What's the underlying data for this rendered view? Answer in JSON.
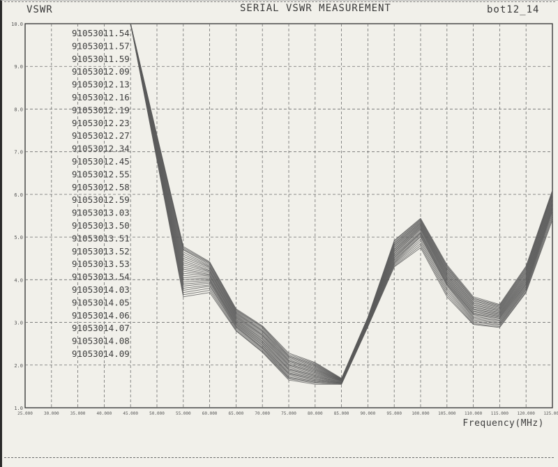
{
  "header": {
    "ylabel": "VSWR",
    "title": "SERIAL VSWR MEASUREMENT",
    "file_name": "bot12_14"
  },
  "colors": {
    "paper": "#f1f0ea",
    "ink": "#3a3a3a",
    "grid": "#6e6e6e",
    "series": "#5a5a5a"
  },
  "chart_data": {
    "type": "line",
    "title": "SERIAL VSWR MEASUREMENT",
    "xlabel": "Frequency(MHz)",
    "ylabel": "VSWR",
    "xlim": [
      25,
      125
    ],
    "ylim": [
      1.0,
      10.0
    ],
    "grid": true,
    "legend_position": "top-left",
    "x_ticks": [
      "25.000",
      "30.000",
      "35.000",
      "40.000",
      "45.000",
      "50.000",
      "55.000",
      "60.000",
      "65.000",
      "70.000",
      "75.000",
      "80.000",
      "85.000",
      "90.000",
      "95.000",
      "100.000",
      "105.000",
      "110.000",
      "115.000",
      "120.000",
      "125.000"
    ],
    "y_ticks": [
      "1.0",
      "2.0",
      "3.0",
      "4.0",
      "5.0",
      "6.0",
      "7.0",
      "8.0",
      "9.0",
      "10.0"
    ],
    "x": [
      45,
      55,
      60,
      65,
      70,
      75,
      80,
      85,
      90,
      95,
      100,
      105,
      110,
      115,
      120,
      125
    ],
    "series": [
      {
        "name": "91053011.54",
        "values": [
          10.0,
          3.6,
          3.7,
          2.8,
          2.3,
          1.65,
          1.55,
          1.55,
          2.9,
          4.3,
          4.75,
          3.6,
          2.95,
          2.88,
          3.7,
          5.4
        ]
      },
      {
        "name": "91053011.57",
        "values": [
          10.0,
          3.65,
          3.75,
          2.82,
          2.32,
          1.68,
          1.58,
          1.55,
          2.9,
          4.32,
          4.8,
          3.65,
          2.97,
          2.9,
          3.72,
          5.45
        ]
      },
      {
        "name": "91053011.59",
        "values": [
          10.0,
          3.7,
          3.8,
          2.85,
          2.35,
          1.7,
          1.6,
          1.56,
          2.91,
          4.35,
          4.85,
          3.7,
          3.0,
          2.93,
          3.75,
          5.5
        ]
      },
      {
        "name": "91053012.09",
        "values": [
          10.0,
          3.75,
          3.85,
          2.88,
          2.38,
          1.72,
          1.62,
          1.57,
          2.92,
          4.38,
          4.9,
          3.75,
          3.03,
          2.95,
          3.78,
          5.55
        ]
      },
      {
        "name": "91053012.13",
        "values": [
          10.0,
          3.8,
          3.88,
          2.9,
          2.4,
          1.75,
          1.64,
          1.57,
          2.93,
          4.4,
          4.95,
          3.8,
          3.06,
          2.98,
          3.8,
          5.6
        ]
      },
      {
        "name": "91053012.16",
        "values": [
          10.0,
          3.85,
          3.92,
          2.92,
          2.42,
          1.78,
          1.66,
          1.58,
          2.94,
          4.42,
          5.0,
          3.85,
          3.09,
          3.0,
          3.83,
          5.62
        ]
      },
      {
        "name": "91053012.19",
        "values": [
          10.0,
          3.9,
          3.95,
          2.94,
          2.45,
          1.8,
          1.68,
          1.58,
          2.95,
          4.45,
          5.02,
          3.88,
          3.12,
          3.03,
          3.85,
          5.65
        ]
      },
      {
        "name": "91053012.23",
        "values": [
          10.0,
          3.95,
          3.98,
          2.96,
          2.47,
          1.82,
          1.7,
          1.59,
          2.96,
          4.47,
          5.05,
          3.9,
          3.15,
          3.05,
          3.88,
          5.68
        ]
      },
      {
        "name": "91053012.27",
        "values": [
          10.0,
          4.0,
          4.0,
          2.98,
          2.5,
          1.85,
          1.72,
          1.6,
          2.97,
          4.5,
          5.08,
          3.92,
          3.18,
          3.08,
          3.9,
          5.7
        ]
      },
      {
        "name": "91053012.34",
        "values": [
          10.0,
          4.05,
          4.02,
          3.0,
          2.52,
          1.88,
          1.74,
          1.6,
          2.98,
          4.52,
          5.1,
          3.95,
          3.2,
          3.1,
          3.92,
          5.72
        ]
      },
      {
        "name": "91053012.45",
        "values": [
          10.0,
          4.1,
          4.05,
          3.02,
          2.55,
          1.9,
          1.76,
          1.61,
          2.99,
          4.55,
          5.12,
          3.97,
          3.22,
          3.12,
          3.95,
          5.75
        ]
      },
      {
        "name": "91053012.55",
        "values": [
          10.0,
          4.15,
          4.08,
          3.04,
          2.57,
          1.92,
          1.78,
          1.62,
          3.0,
          4.57,
          5.15,
          4.0,
          3.25,
          3.14,
          3.97,
          5.78
        ]
      },
      {
        "name": "91053012.58",
        "values": [
          10.0,
          4.2,
          4.1,
          3.06,
          2.6,
          1.95,
          1.8,
          1.62,
          3.0,
          4.6,
          5.18,
          4.02,
          3.27,
          3.16,
          4.0,
          5.8
        ]
      },
      {
        "name": "91053012.59",
        "values": [
          10.0,
          4.25,
          4.12,
          3.08,
          2.62,
          1.98,
          1.82,
          1.63,
          3.01,
          4.62,
          5.2,
          4.05,
          3.3,
          3.18,
          4.02,
          5.82
        ]
      },
      {
        "name": "91053013.03",
        "values": [
          10.0,
          4.3,
          4.15,
          3.1,
          2.65,
          2.0,
          1.84,
          1.63,
          3.02,
          4.65,
          5.22,
          4.07,
          3.32,
          3.2,
          4.05,
          5.85
        ]
      },
      {
        "name": "91053013.50",
        "values": [
          10.0,
          4.35,
          4.18,
          3.12,
          2.68,
          2.02,
          1.86,
          1.64,
          3.03,
          4.67,
          5.24,
          4.1,
          3.35,
          3.22,
          4.07,
          5.88
        ]
      },
      {
        "name": "91053013.51",
        "values": [
          10.0,
          4.4,
          4.2,
          3.14,
          2.7,
          2.05,
          1.88,
          1.64,
          3.04,
          4.7,
          5.26,
          4.12,
          3.37,
          3.24,
          4.1,
          5.9
        ]
      },
      {
        "name": "91053013.52",
        "values": [
          10.0,
          4.45,
          4.22,
          3.16,
          2.72,
          2.08,
          1.9,
          1.65,
          3.05,
          4.72,
          5.28,
          4.15,
          3.4,
          3.26,
          4.12,
          5.92
        ]
      },
      {
        "name": "91053013.53",
        "values": [
          10.0,
          4.5,
          4.25,
          3.18,
          2.75,
          2.1,
          1.92,
          1.65,
          3.06,
          4.75,
          5.3,
          4.17,
          3.42,
          3.28,
          4.15,
          5.95
        ]
      },
      {
        "name": "91053013.54",
        "values": [
          10.0,
          4.55,
          4.28,
          3.2,
          2.78,
          2.12,
          1.94,
          1.66,
          3.07,
          4.77,
          5.32,
          4.2,
          3.45,
          3.3,
          4.17,
          5.98
        ]
      },
      {
        "name": "91053014.03",
        "values": [
          10.0,
          4.6,
          4.3,
          3.22,
          2.8,
          2.15,
          1.96,
          1.66,
          3.08,
          4.8,
          5.34,
          4.22,
          3.47,
          3.32,
          4.2,
          6.0
        ]
      },
      {
        "name": "91053014.05",
        "values": [
          10.0,
          4.65,
          4.32,
          3.24,
          2.82,
          2.18,
          1.98,
          1.67,
          3.09,
          4.82,
          5.36,
          4.25,
          3.5,
          3.34,
          4.22,
          6.02
        ]
      },
      {
        "name": "91053014.06",
        "values": [
          10.0,
          4.7,
          4.35,
          3.26,
          2.85,
          2.2,
          2.0,
          1.67,
          3.1,
          4.85,
          5.38,
          4.27,
          3.52,
          3.36,
          4.25,
          6.04
        ]
      },
      {
        "name": "91053014.07",
        "values": [
          10.0,
          4.72,
          4.38,
          3.28,
          2.88,
          2.22,
          2.02,
          1.68,
          3.1,
          4.87,
          5.4,
          4.3,
          3.55,
          3.38,
          4.27,
          6.06
        ]
      },
      {
        "name": "91053014.08",
        "values": [
          10.0,
          4.75,
          4.4,
          3.3,
          2.9,
          2.25,
          2.04,
          1.68,
          3.11,
          4.9,
          5.42,
          4.32,
          3.57,
          3.4,
          4.3,
          6.08
        ]
      },
      {
        "name": "91053014.09",
        "values": [
          10.0,
          4.78,
          4.42,
          3.32,
          2.92,
          2.28,
          2.06,
          1.69,
          3.12,
          4.92,
          5.44,
          4.35,
          3.6,
          3.42,
          4.32,
          6.1
        ]
      }
    ]
  }
}
